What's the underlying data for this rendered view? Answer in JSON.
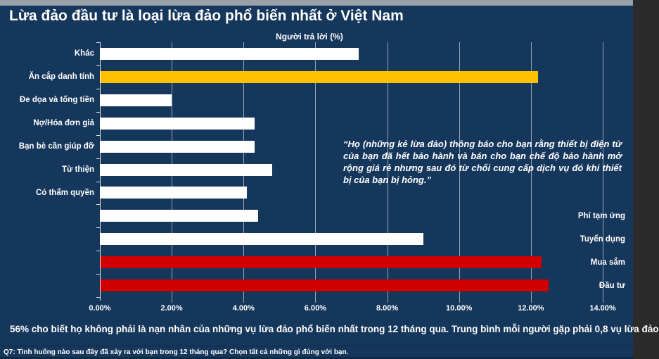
{
  "title": "Lừa đảo đầu tư là loại lừa đảo phổ biến nhất ở Việt Nam",
  "chart_data": {
    "type": "bar",
    "orientation": "horizontal",
    "axis_title": "Người trả lời (%)",
    "categories": [
      "Khác",
      "Ăn cắp danh tính",
      "Đe dọa và tống tiền",
      "Nợ/Hóa đơn giả",
      "Bạn bè cần giúp đỡ",
      "Từ thiện",
      "Có thẩm quyền",
      "Phí tạm ứng",
      "Tuyển dụng",
      "Mua sắm",
      "Đầu tư"
    ],
    "values": [
      7.2,
      12.2,
      2.0,
      4.3,
      4.3,
      4.8,
      4.1,
      4.4,
      9.0,
      12.3,
      12.5
    ],
    "bar_colors": [
      "#FFFFFF",
      "#FFC000",
      "#FFFFFF",
      "#FFFFFF",
      "#FFFFFF",
      "#FFFFFF",
      "#FFFFFF",
      "#FFFFFF",
      "#FFFFFF",
      "#D00000",
      "#D00000"
    ],
    "label_side": [
      "left",
      "left",
      "left",
      "left",
      "left",
      "left",
      "left",
      "right",
      "right",
      "right",
      "right"
    ],
    "xlim": [
      0,
      14
    ],
    "x_tick_labels": [
      "0.00%",
      "2.00%",
      "4.00%",
      "6.00%",
      "8.00%",
      "10.00%",
      "12.00%",
      "14.00%"
    ],
    "grid": true,
    "legend": "none"
  },
  "quote": "“Họ (những kẻ lừa đảo) thông báo cho bạn rằng thiết bị điện  tử của bạn đã hết bảo hành và bán cho bạn chế độ bảo hành  mở rộng giá rẻ nhưng sau đó từ chối cung cấp dịch vụ đó khi thiết bị của bạn bị hỏng.”",
  "callout": "56% cho biết họ không phải là nạn nhân của những vụ lừa đảo phổ biến nhất trong 12 tháng qua. Trung bình mỗi người gặp phải 0,8 vụ lừa  đảo",
  "footnote": "Q7: Tình huống nào sau đây đã xảy ra với bạn trong 12 tháng qua? Chọn tất cả những gì đúng với bạn.",
  "colors": {
    "background": "#16375C",
    "top_strip": "#9BA1A8",
    "bar_default": "#FFFFFF",
    "bar_highlight_gold": "#FFC000",
    "bar_highlight_red": "#D00000",
    "bottom_strip": "#0E2A45"
  }
}
